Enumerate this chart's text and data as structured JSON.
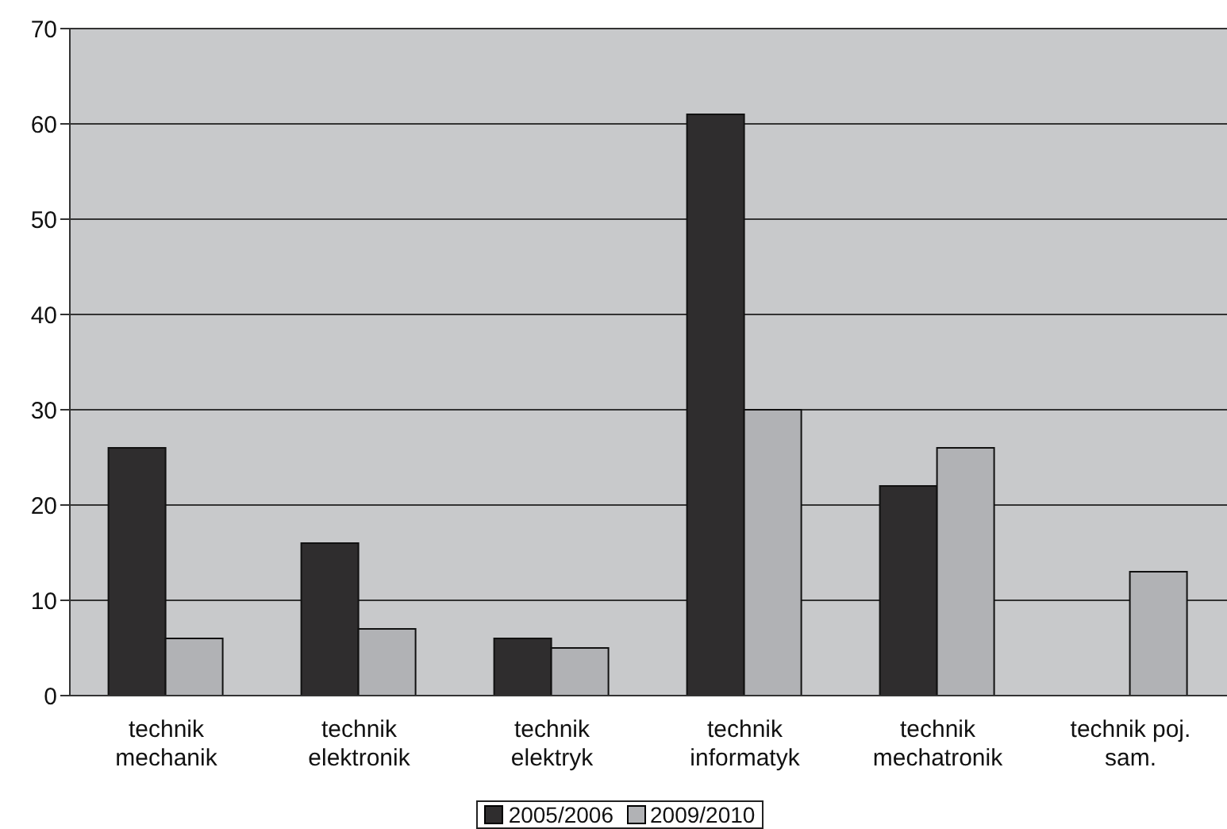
{
  "chart_data": {
    "type": "bar",
    "categories": [
      "technik mechanik",
      "technik elektronik",
      "technik elektryk",
      "technik informatyk",
      "technik mechatronik",
      "technik poj. sam."
    ],
    "series": [
      {
        "name": "2005/2006",
        "color": "#2f2d2e",
        "values": [
          26,
          16,
          6,
          61,
          22,
          null
        ]
      },
      {
        "name": "2009/2010",
        "color": "#b1b2b5",
        "values": [
          6,
          7,
          5,
          30,
          26,
          13
        ]
      }
    ],
    "ylim": [
      0,
      70
    ],
    "yticks": [
      0,
      10,
      20,
      30,
      40,
      50,
      60,
      70
    ],
    "grid": "y",
    "legend": "bottom"
  }
}
